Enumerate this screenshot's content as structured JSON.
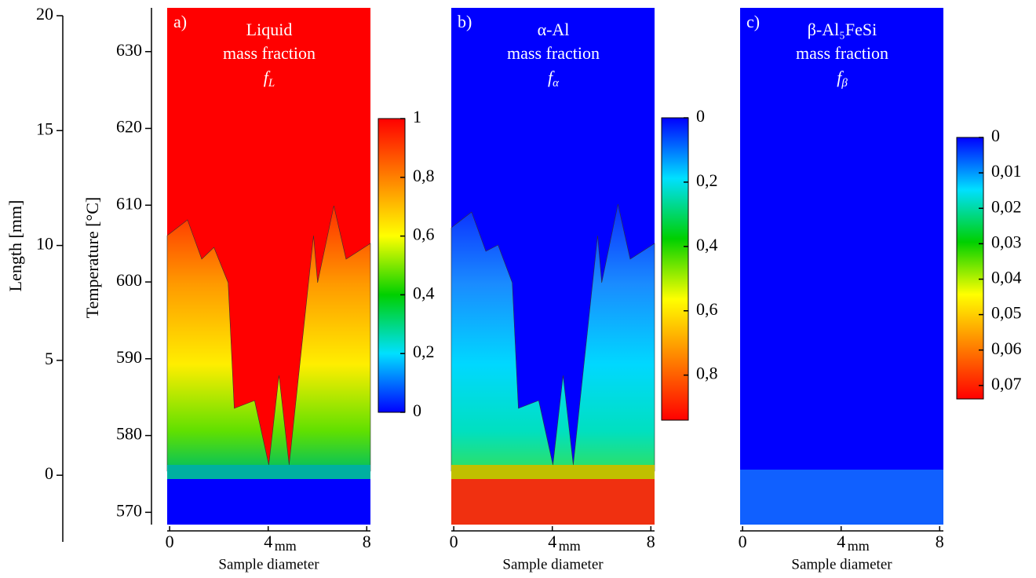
{
  "length_axis": {
    "label": "Length [mm]",
    "ylim": [
      -2.9,
      20
    ],
    "yticks": [
      0,
      5,
      10,
      15,
      20
    ]
  },
  "temperature_axis": {
    "label": "Temperature [°C]",
    "ylim": [
      568.4,
      635.7
    ],
    "yticks": [
      570,
      580,
      590,
      600,
      610,
      620,
      630
    ]
  },
  "panels": [
    {
      "tag": "a)",
      "title": [
        "Liquid",
        "mass fraction"
      ],
      "symbol": "f",
      "symbol_sub": "L",
      "xlabel": "Sample diameter",
      "xlim": [
        -0.1,
        8.15
      ],
      "xticks": [
        0,
        4,
        8
      ],
      "xunit": "mm",
      "colorbar": {
        "range": [
          1,
          0
        ],
        "ticks": [
          {
            "value": 1,
            "label": "1"
          },
          {
            "value": 0.8,
            "label": "0,8"
          },
          {
            "value": 0.6,
            "label": "0,6"
          },
          {
            "value": 0.4,
            "label": "0,4"
          },
          {
            "value": 0.2,
            "label": "0,2"
          },
          0
        ],
        "colors": [
          "#ff0000",
          "#ff8000",
          "#ffff00",
          "#00d000",
          "#00e0ff",
          "#0000ff"
        ]
      }
    },
    {
      "tag": "b)",
      "title": [
        "α-Al",
        "mass fraction"
      ],
      "symbol": "f",
      "symbol_sub": "α",
      "xlabel": "Sample diameter",
      "xlim": [
        -0.1,
        8.15
      ],
      "xticks": [
        0,
        4,
        8
      ],
      "xunit": "mm",
      "colorbar": {
        "range": [
          0,
          0.94
        ],
        "ticks": [
          0,
          {
            "value": 0.2,
            "label": "0,2"
          },
          {
            "value": 0.4,
            "label": "0,4"
          },
          {
            "value": 0.6,
            "label": "0,6"
          },
          {
            "value": 0.8,
            "label": "0,8"
          }
        ],
        "colors": [
          "#0000ff",
          "#00e0ff",
          "#00d000",
          "#ffff00",
          "#ff8000",
          "#ff0000"
        ]
      }
    },
    {
      "tag": "c)",
      "title": [
        "β-Al₅FeSi",
        "mass fraction"
      ],
      "symbol": "f",
      "symbol_sub": "β",
      "xlabel": "Sample diameter",
      "xlim": [
        -0.1,
        8.15
      ],
      "xticks": [
        0,
        4,
        8
      ],
      "xunit": "mm",
      "colorbar": {
        "range": [
          0,
          0.0738
        ],
        "ticks": [
          0,
          {
            "value": 0.01,
            "label": "0,01"
          },
          {
            "value": 0.02,
            "label": "0,02"
          },
          {
            "value": 0.03,
            "label": "0,03"
          },
          {
            "value": 0.04,
            "label": "0,04"
          },
          {
            "value": 0.05,
            "label": "0,05"
          },
          {
            "value": 0.06,
            "label": "0,06"
          },
          {
            "value": 0.07,
            "label": "0,07"
          }
        ],
        "colors": [
          "#0000ff",
          "#00e0ff",
          "#00d000",
          "#ffff00",
          "#ff8000",
          "#ff0000"
        ]
      }
    }
  ]
}
